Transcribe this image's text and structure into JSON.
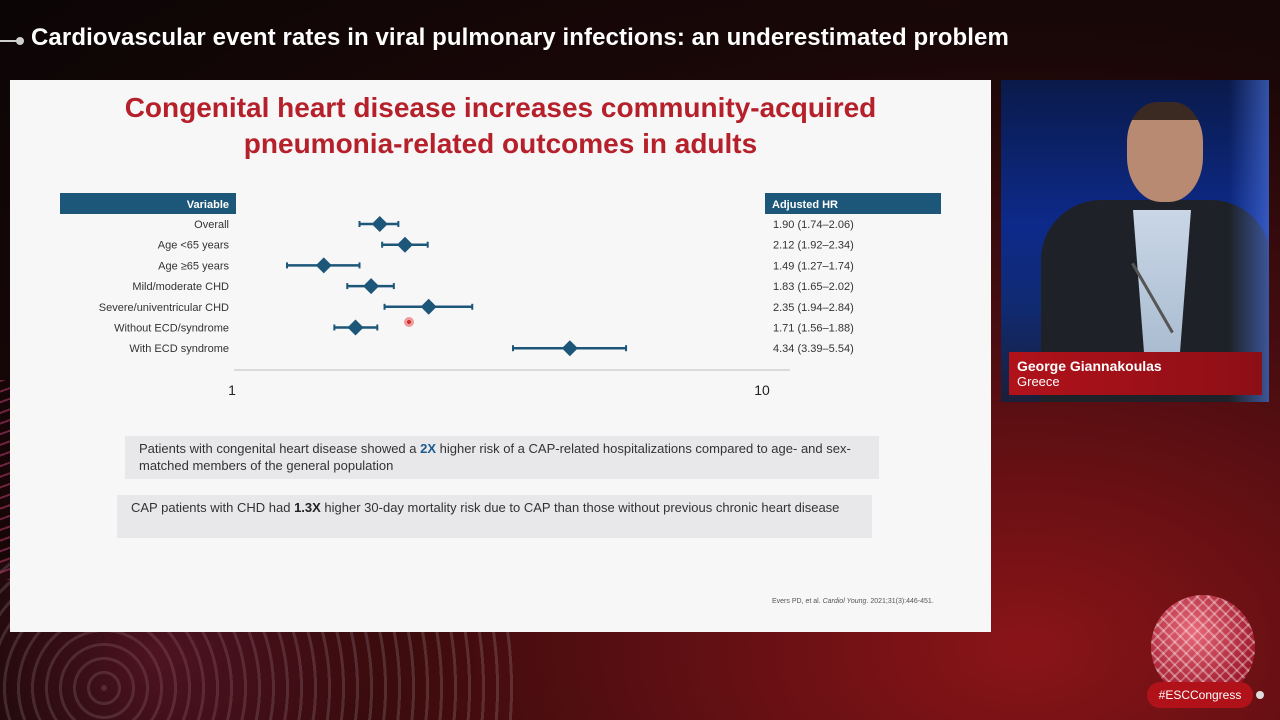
{
  "header": {
    "title": "Cardiovascular event rates in viral pulmonary infections: an underestimated problem"
  },
  "slide": {
    "title_line1": "Congenital heart disease increases community-acquired",
    "title_line2": "pneumonia-related outcomes in adults",
    "variable_header": "Variable",
    "hr_header": "Adjusted HR",
    "box1": {
      "pre": "Patients with congenital heart disease showed a ",
      "highlight": "2X",
      "post": " higher risk of a CAP-related hospitalizations compared to age- and sex-matched members of the general population"
    },
    "box2": {
      "pre": "CAP patients with CHD had ",
      "highlight": "1.3X",
      "post": " higher 30-day mortality risk due to CAP than those without previous chronic heart disease"
    },
    "reference_authors": "Evers PD, et al. ",
    "reference_journal": "Cardiol Young",
    "reference_rest": ". 2021;31(3):446-451."
  },
  "chart_data": {
    "type": "forest",
    "xscale": "log",
    "xlim": [
      1,
      10
    ],
    "xticks": [
      "1",
      "10"
    ],
    "rows": [
      {
        "label": "Overall",
        "hr": 1.9,
        "lo": 1.74,
        "hi": 2.06,
        "text": "1.90 (1.74–2.06)"
      },
      {
        "label": "Age <65 years",
        "hr": 2.12,
        "lo": 1.92,
        "hi": 2.34,
        "text": "2.12 (1.92–2.34)"
      },
      {
        "label": "Age ≥65 years",
        "hr": 1.49,
        "lo": 1.27,
        "hi": 1.74,
        "text": "1.49 (1.27–1.74)"
      },
      {
        "label": "Mild/moderate CHD",
        "hr": 1.83,
        "lo": 1.65,
        "hi": 2.02,
        "text": "1.83 (1.65–2.02)"
      },
      {
        "label": "Severe/univentricular CHD",
        "hr": 2.35,
        "lo": 1.94,
        "hi": 2.84,
        "text": "2.35 (1.94–2.84)"
      },
      {
        "label": "Without ECD/syndrome",
        "hr": 1.71,
        "lo": 1.56,
        "hi": 1.88,
        "text": "1.71 (1.56–1.88)"
      },
      {
        "label": "With ECD syndrome",
        "hr": 4.34,
        "lo": 3.39,
        "hi": 5.54,
        "text": "4.34 (3.39–5.54)"
      }
    ]
  },
  "speaker": {
    "name": "George Giannakoulas",
    "country": "Greece"
  },
  "hashtag": "#ESCCongress",
  "colors": {
    "accent_red": "#b5202a",
    "header_blue": "#1c5678",
    "marker": "#1c5678"
  }
}
